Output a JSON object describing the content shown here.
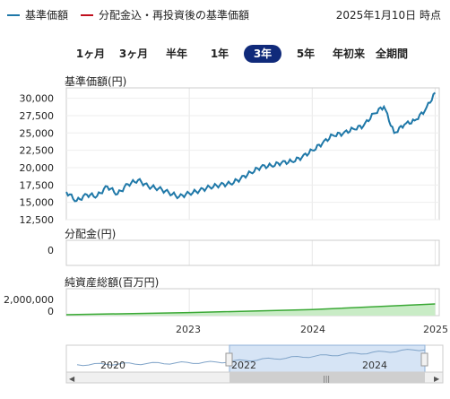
{
  "legend": {
    "nav_label": "基準価額",
    "nav_color": "#1f78a8",
    "reinvest_label": "分配金込・再投資後の基準価額",
    "reinvest_color": "#c0101e"
  },
  "as_of": "2025年1月10日 時点",
  "tabs": [
    {
      "label": "1ヶ月",
      "active": false
    },
    {
      "label": "3ヶ月",
      "active": false
    },
    {
      "label": "半年",
      "active": false
    },
    {
      "label": "1年",
      "active": false
    },
    {
      "label": "3年",
      "active": true
    },
    {
      "label": "5年",
      "active": false
    },
    {
      "label": "年初来",
      "active": false
    },
    {
      "label": "全期間",
      "active": false
    }
  ],
  "chart_data": [
    {
      "type": "line",
      "ylabel": "基準価額(円)",
      "ylim": [
        12500,
        31500
      ],
      "yticks": [
        "30,000",
        "27,500",
        "25,000",
        "22,500",
        "20,000",
        "17,500",
        "15,000",
        "12,500"
      ],
      "x": [
        "2022-01",
        "2022-02",
        "2022-03",
        "2022-04",
        "2022-05",
        "2022-06",
        "2022-07",
        "2022-08",
        "2022-09",
        "2022-10",
        "2022-11",
        "2022-12",
        "2023-01",
        "2023-02",
        "2023-03",
        "2023-04",
        "2023-05",
        "2023-06",
        "2023-07",
        "2023-08",
        "2023-09",
        "2023-10",
        "2023-11",
        "2023-12",
        "2024-01",
        "2024-02",
        "2024-03",
        "2024-04",
        "2024-05",
        "2024-06",
        "2024-07",
        "2024-08",
        "2024-09",
        "2024-10",
        "2024-11",
        "2024-12",
        "2025-01"
      ],
      "series": [
        {
          "name": "基準価額",
          "color": "#1f78a8",
          "values": [
            16500,
            15200,
            16100,
            15900,
            17300,
            16200,
            17600,
            18200,
            17300,
            17000,
            16400,
            15800,
            16300,
            16700,
            17200,
            17500,
            17700,
            18400,
            19300,
            20100,
            20300,
            20700,
            20900,
            21500,
            22500,
            23500,
            24700,
            24900,
            25600,
            26000,
            27800,
            28800,
            25000,
            26200,
            26800,
            28200,
            30800
          ]
        }
      ]
    },
    {
      "type": "bar",
      "ylabel": "分配金(円)",
      "yticks": [
        "0"
      ],
      "values": []
    },
    {
      "type": "area",
      "ylabel": "純資産総額(百万円)",
      "ylim": [
        0,
        2500000
      ],
      "yticks": [
        "2,000,000",
        "0"
      ],
      "x": [
        "2022-01",
        "2023-01",
        "2024-01",
        "2025-01"
      ],
      "series": [
        {
          "name": "純資産総額",
          "color": "#3aa835",
          "values": [
            80000,
            280000,
            560000,
            1080000
          ]
        }
      ],
      "xticks": [
        "2023",
        "2024",
        "2025"
      ]
    },
    {
      "type": "area",
      "title": "navigator",
      "xticks": [
        "2020",
        "2022",
        "2024"
      ]
    }
  ]
}
